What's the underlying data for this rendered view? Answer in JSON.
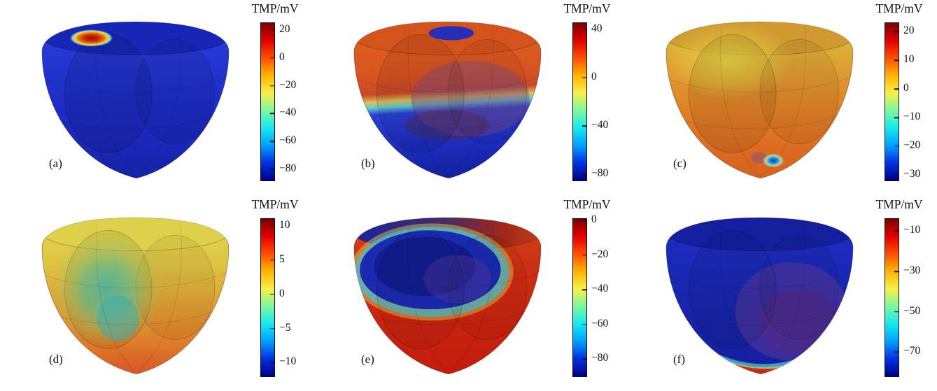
{
  "figure": {
    "background_color": "#ffffff",
    "colormap": "jet",
    "colormap_colors": [
      "#7f0000",
      "#e10000",
      "#ff4f00",
      "#ffb400",
      "#f8f048",
      "#7cf8a0",
      "#16e8f0",
      "#00a0ff",
      "#0030e0",
      "#000085"
    ],
    "panel_labels": [
      "(a)",
      "(b)",
      "(c)",
      "(d)",
      "(e)",
      "(f)"
    ]
  },
  "chart_data": [
    {
      "type": "heatmap",
      "panel": "(a)",
      "title": "TMP/mV",
      "colormap": "jet",
      "colorbar_ticks": [
        20,
        0,
        -20,
        -40,
        -60,
        -80
      ],
      "colorbar_range": [
        -88,
        25
      ],
      "colors": {
        "resting_body": "#1b2ac0",
        "activation_spot": "#cc2e00"
      },
      "description": "3D biventricular surface at rest (deep blue, about -85 mV) with a small early-activation site (red/orange with yellow fringe) on the upper-left epicardium near the base."
    },
    {
      "type": "heatmap",
      "panel": "(b)",
      "title": "TMP/mV",
      "colormap": "jet",
      "colorbar_ticks": [
        40,
        0,
        -40,
        -80
      ],
      "colorbar_range": [
        -85,
        45
      ],
      "colors": {
        "depolarized": "#d8541f",
        "resting": "#1d2fc0",
        "wavefront": "#ddc258",
        "inner_wall": "#7b4a88"
      },
      "description": "Mid-depolarization: basal half depolarized (orange/red), apical half still resting (blue); sharp wavefront with thin yellow-cyan transition; translucent inner wall appears purple; small dark-blue patch at the top rim."
    },
    {
      "type": "heatmap",
      "panel": "(c)",
      "title": "TMP/mV",
      "colormap": "jet",
      "colorbar_ticks": [
        20,
        10,
        0,
        -10,
        -20,
        -30
      ],
      "colorbar_range": [
        -32,
        23
      ],
      "colors": {
        "base_region": "#d8c23e",
        "apex_region": "#d8611f",
        "late_spot": "#2034c6"
      },
      "description": "Plateau phase: whole surface depolarized, yellow near the base grading to orange-red toward the apex; small blue late/repolarizing spot near the lower wall."
    },
    {
      "type": "heatmap",
      "panel": "(d)",
      "title": "TMP/mV",
      "colormap": "jet",
      "colorbar_ticks": [
        10,
        5,
        0,
        -5,
        -10
      ],
      "colorbar_range": [
        -12,
        11
      ],
      "colors": {
        "base_region": "#e7d94e",
        "mid_wall_patch": "#46b2a2",
        "apex_region": "#d96224"
      },
      "description": "Early repolarization: yellow base, green-cyan patch on the left mid-wall, orange to red toward the apex."
    },
    {
      "type": "heatmap",
      "panel": "(e)",
      "title": "TMP/mV",
      "colormap": "jet",
      "colorbar_ticks": [
        0,
        -20,
        -40,
        -60,
        -80
      ],
      "colorbar_range": [
        -90,
        1
      ],
      "colors": {
        "repolarized_region": "#1a2bb2",
        "still_depolarized": "#c8230f",
        "fringe": "#3fc2da"
      },
      "description": "Repolarization: large upper-left region already repolarized (dark blue with cyan fringe), remainder of the surface still elevated (red)."
    },
    {
      "type": "heatmap",
      "panel": "(f)",
      "title": "TMP/mV",
      "colormap": "jet",
      "colorbar_ticks": [
        -10,
        -30,
        -50,
        -70
      ],
      "colorbar_range": [
        -82,
        -4
      ],
      "colors": {
        "resting_body": "#1826ae",
        "residual_band": "#cc2c10",
        "inner_wall": "#6a3c92"
      },
      "description": "Late repolarization: most of the surface back near rest (dark blue), residual depolarized band (red with yellow-cyan fringe) along the lower-right edge; inner wall seen as purple."
    }
  ]
}
